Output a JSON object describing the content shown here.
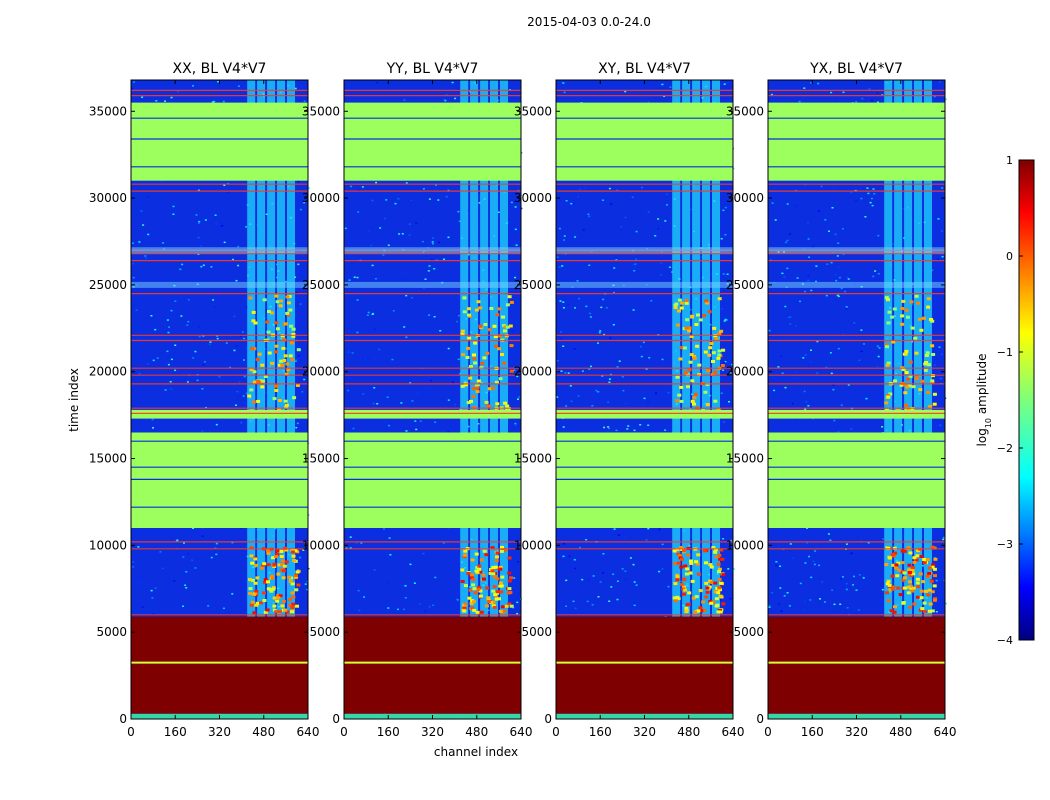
{
  "figure": {
    "suptitle": "2015-04-03 0.0-24.0"
  },
  "chart_data": {
    "type": "heatmap",
    "title": "2015-04-03 0.0-24.0",
    "xlabel": "channel index",
    "ylabel": "time index",
    "xlim": [
      0,
      640
    ],
    "ylim": [
      0,
      36800
    ],
    "xticks": [
      0,
      160,
      320,
      480,
      640
    ],
    "yticks": [
      0,
      5000,
      10000,
      15000,
      20000,
      25000,
      30000,
      35000
    ],
    "panels": [
      {
        "title": "XX, BL V4*V7"
      },
      {
        "title": "YY, BL V4*V7"
      },
      {
        "title": "XY, BL V4*V7"
      },
      {
        "title": "YX, BL V4*V7"
      }
    ],
    "colorbar": {
      "label": "log",
      "label_sub": "10",
      "label_rest": " amplitude",
      "range": [
        -4,
        1
      ],
      "ticks": [
        1,
        0,
        -1,
        -2,
        -3,
        -4
      ],
      "tick_labels": [
        "1",
        "0",
        "−1",
        "−2",
        "−3",
        "−4"
      ],
      "colormap": "jet"
    },
    "regions": {
      "flag_blocks": [
        [
          0,
          5900
        ],
        [
          0,
          320
        ]
      ],
      "saturated_block": [
        300,
        5900
      ],
      "green_bands": [
        [
          11000,
          16500
        ],
        [
          17300,
          17800
        ],
        [
          31000,
          35500
        ]
      ],
      "background_noise": [
        6000,
        11000
      ],
      "rfi_channel_range": [
        420,
        600
      ],
      "band_edges": [
        25000,
        27000
      ]
    },
    "colors": {
      "flagged": "#7f0000",
      "green_band": "#9cff5e",
      "background": "#0b2ee0",
      "rfi": "#20d8ff",
      "red_line": "#ff3b1f"
    }
  }
}
